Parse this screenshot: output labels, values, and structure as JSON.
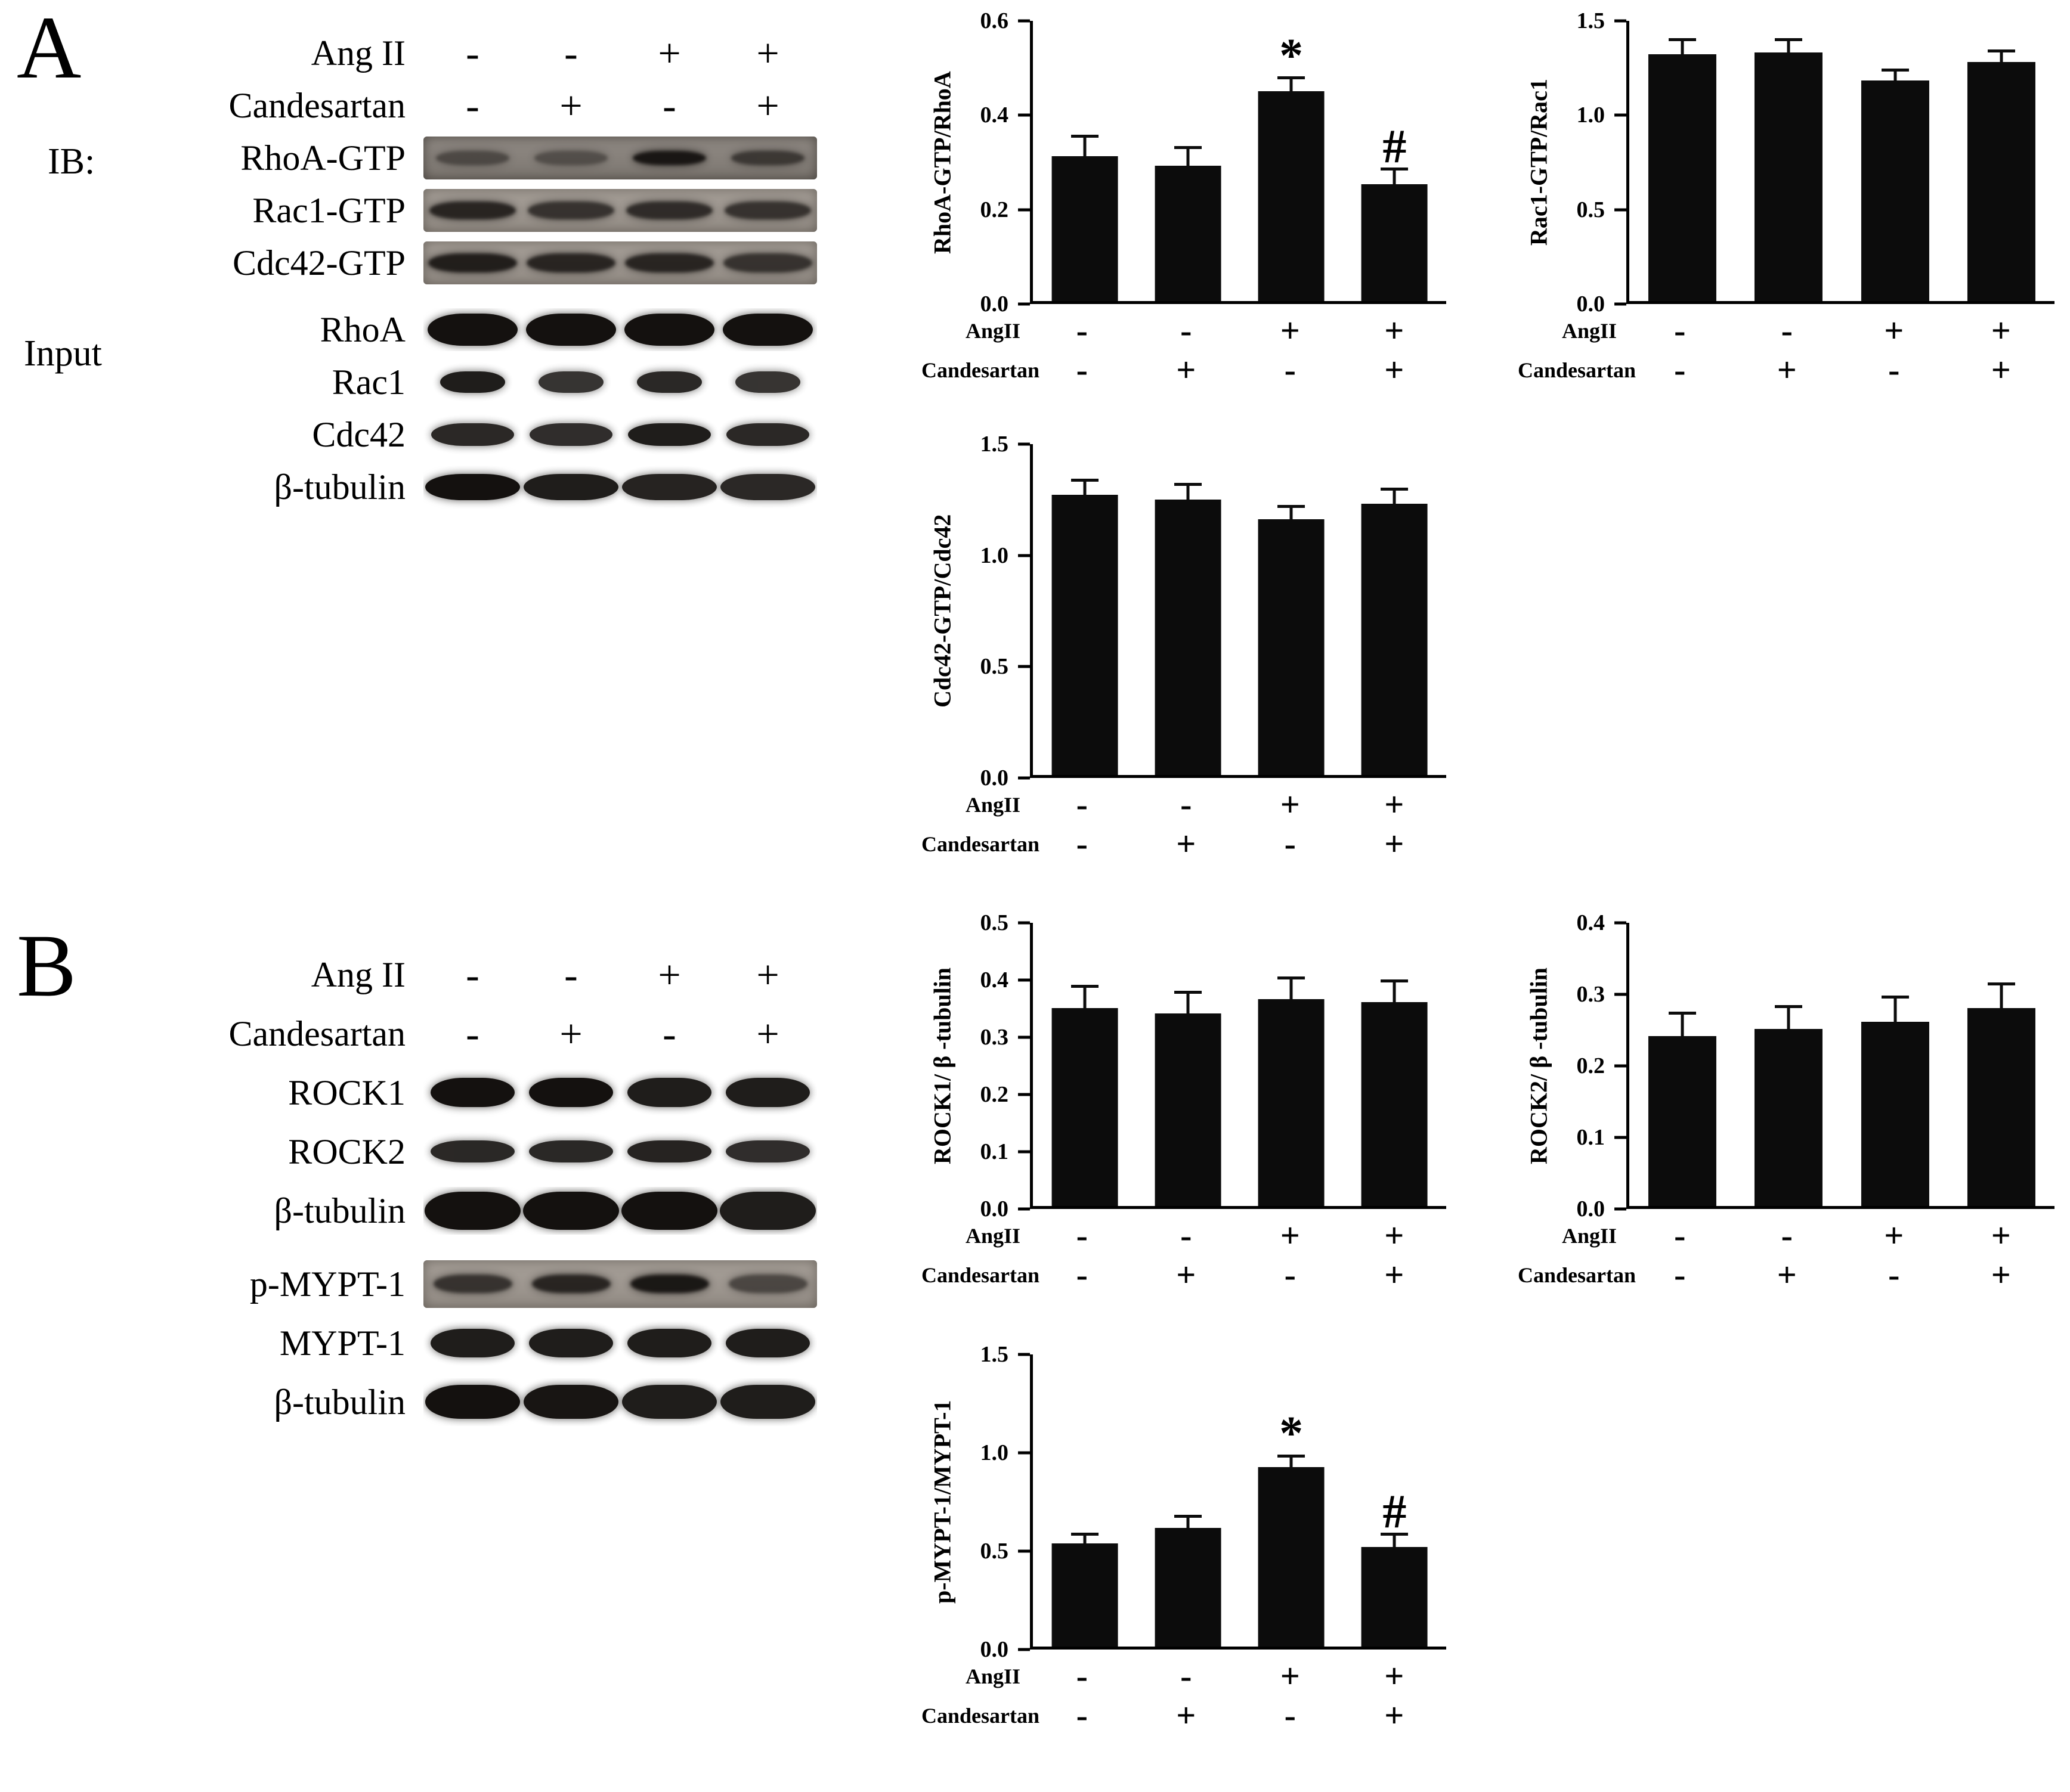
{
  "panels": [
    {
      "label": "A"
    },
    {
      "label": "B"
    }
  ],
  "blots": [
    {
      "header_rows": [
        {
          "label": "Ang II",
          "signs": [
            "-",
            "-",
            "+",
            "+"
          ]
        },
        {
          "label": "Candesartan",
          "signs": [
            "-",
            "+",
            "-",
            "+"
          ]
        }
      ],
      "side_labels": [
        {
          "text": "IB:"
        },
        {
          "text": "Input"
        }
      ],
      "rows": [
        {
          "label": "RhoA-GTP",
          "style": "noisy-dark",
          "bands": [
            0.5,
            0.45,
            0.95,
            0.65
          ],
          "band_h": 0.32,
          "band_w": 0.75
        },
        {
          "label": "Rac1-GTP",
          "style": "noisy",
          "bands": [
            0.85,
            0.75,
            0.8,
            0.75
          ],
          "band_h": 0.42,
          "band_w": 0.88
        },
        {
          "label": "Cdc42-GTP",
          "style": "noisy",
          "bands": [
            0.9,
            0.85,
            0.85,
            0.75
          ],
          "band_h": 0.44,
          "band_w": 0.9
        },
        {
          "label": "RhoA",
          "style": "clean",
          "bands": [
            1,
            1,
            1,
            1
          ],
          "band_h": 0.74,
          "band_w": 0.92,
          "gap_before": true
        },
        {
          "label": "Rac1",
          "style": "clean",
          "bands": [
            0.95,
            0.85,
            0.9,
            0.85
          ],
          "band_h": 0.5,
          "band_w": 0.66
        },
        {
          "label": "Cdc42",
          "style": "clean",
          "bands": [
            0.9,
            0.88,
            0.95,
            0.9
          ],
          "band_h": 0.52,
          "band_w": 0.84
        },
        {
          "label": "β-tubulin",
          "style": "clean",
          "bands": [
            1,
            0.95,
            0.92,
            0.9
          ],
          "band_h": 0.6,
          "band_w": 0.96
        }
      ]
    },
    {
      "header_rows": [
        {
          "label": "Ang II",
          "signs": [
            "-",
            "-",
            "+",
            "+"
          ]
        },
        {
          "label": "Candesartan",
          "signs": [
            "-",
            "+",
            "-",
            "+"
          ]
        }
      ],
      "side_labels": [],
      "rows": [
        {
          "label": "ROCK1",
          "style": "clean",
          "bands": [
            1,
            1,
            0.95,
            0.95
          ],
          "band_h": 0.62,
          "band_w": 0.86
        },
        {
          "label": "ROCK2",
          "style": "clean",
          "bands": [
            0.9,
            0.9,
            0.92,
            0.88
          ],
          "band_h": 0.46,
          "band_w": 0.86
        },
        {
          "label": "β-tubulin",
          "style": "clean",
          "bands": [
            1,
            1,
            1,
            0.95
          ],
          "band_h": 0.8,
          "band_w": 0.98
        },
        {
          "label": "p-MYPT-1",
          "style": "noisy",
          "bands": [
            0.75,
            0.85,
            0.95,
            0.6
          ],
          "band_h": 0.38,
          "band_w": 0.8,
          "gap_before": true
        },
        {
          "label": "MYPT-1",
          "style": "clean",
          "bands": [
            0.95,
            0.95,
            0.95,
            0.95
          ],
          "band_h": 0.6,
          "band_w": 0.86
        },
        {
          "label": "β-tubulin",
          "style": "clean",
          "bands": [
            1,
            0.98,
            0.95,
            0.95
          ],
          "band_h": 0.72,
          "band_w": 0.96
        }
      ]
    }
  ],
  "chart_data": [
    {
      "id": "rhoa-gtp-rhoa",
      "type": "bar",
      "title": "",
      "ylabel": "RhoA-GTP/RhoA",
      "ylim": [
        0,
        0.6
      ],
      "yticks": [
        "0.0",
        "0.2",
        "0.4",
        "0.6"
      ],
      "values": [
        0.31,
        0.29,
        0.45,
        0.25
      ],
      "errors": [
        0.04,
        0.035,
        0.025,
        0.03
      ],
      "annotations": [
        "",
        "",
        "*",
        "#"
      ],
      "x_rows": [
        {
          "label": "AngII",
          "signs": [
            "-",
            "-",
            "+",
            "+"
          ]
        },
        {
          "label": "Candesartan",
          "signs": [
            "-",
            "+",
            "-",
            "+"
          ]
        }
      ]
    },
    {
      "id": "rac1-gtp-rac1",
      "type": "bar",
      "title": "",
      "ylabel": "Rac1-GTP/Rac1",
      "ylim": [
        0,
        1.5
      ],
      "yticks": [
        "0.0",
        "0.5",
        "1.0",
        "1.5"
      ],
      "values": [
        1.32,
        1.33,
        1.18,
        1.28
      ],
      "errors": [
        0.07,
        0.06,
        0.05,
        0.05
      ],
      "annotations": [
        "",
        "",
        "",
        ""
      ],
      "x_rows": [
        {
          "label": "AngII",
          "signs": [
            "-",
            "-",
            "+",
            "+"
          ]
        },
        {
          "label": "Candesartan",
          "signs": [
            "-",
            "+",
            "-",
            "+"
          ]
        }
      ]
    },
    {
      "id": "cdc42-gtp-cdc42",
      "type": "bar",
      "title": "",
      "ylabel": "Cdc42-GTP/Cdc42",
      "ylim": [
        0,
        1.5
      ],
      "yticks": [
        "0.0",
        "0.5",
        "1.0",
        "1.5"
      ],
      "values": [
        1.27,
        1.25,
        1.16,
        1.23
      ],
      "errors": [
        0.06,
        0.06,
        0.05,
        0.06
      ],
      "annotations": [
        "",
        "",
        "",
        ""
      ],
      "x_rows": [
        {
          "label": "AngII",
          "signs": [
            "-",
            "-",
            "+",
            "+"
          ]
        },
        {
          "label": "Candesartan",
          "signs": [
            "-",
            "+",
            "-",
            "+"
          ]
        }
      ]
    },
    {
      "id": "rock1-btubulin",
      "type": "bar",
      "title": "",
      "ylabel": "ROCK1/ β -tubulin",
      "ylim": [
        0,
        0.5
      ],
      "yticks": [
        "0.0",
        "0.1",
        "0.2",
        "0.3",
        "0.4",
        "0.5"
      ],
      "values": [
        0.35,
        0.34,
        0.365,
        0.36
      ],
      "errors": [
        0.035,
        0.035,
        0.035,
        0.035
      ],
      "annotations": [
        "",
        "",
        "",
        ""
      ],
      "x_rows": [
        {
          "label": "AngII",
          "signs": [
            "-",
            "-",
            "+",
            "+"
          ]
        },
        {
          "label": "Candesartan",
          "signs": [
            "-",
            "+",
            "-",
            "+"
          ]
        }
      ]
    },
    {
      "id": "rock2-btubulin",
      "type": "bar",
      "title": "",
      "ylabel": "ROCK2/ β -tubulin",
      "ylim": [
        0,
        0.4
      ],
      "yticks": [
        "0.0",
        "0.1",
        "0.2",
        "0.3",
        "0.4"
      ],
      "values": [
        0.24,
        0.25,
        0.26,
        0.28
      ],
      "errors": [
        0.03,
        0.03,
        0.033,
        0.032
      ],
      "annotations": [
        "",
        "",
        "",
        ""
      ],
      "x_rows": [
        {
          "label": "AngII",
          "signs": [
            "-",
            "-",
            "+",
            "+"
          ]
        },
        {
          "label": "Candesartan",
          "signs": [
            "-",
            "+",
            "-",
            "+"
          ]
        }
      ]
    },
    {
      "id": "pmypt1-mypt1",
      "type": "bar",
      "title": "",
      "ylabel": "p-MYPT-1/MYPT-1",
      "ylim": [
        0,
        1.5
      ],
      "yticks": [
        "0.0",
        "0.5",
        "1.0",
        "1.5"
      ],
      "values": [
        0.53,
        0.61,
        0.92,
        0.51
      ],
      "errors": [
        0.04,
        0.05,
        0.05,
        0.06
      ],
      "annotations": [
        "",
        "",
        "*",
        "#"
      ],
      "x_rows": [
        {
          "label": "AngII",
          "signs": [
            "-",
            "-",
            "+",
            "+"
          ]
        },
        {
          "label": "Candesartan",
          "signs": [
            "-",
            "+",
            "-",
            "+"
          ]
        }
      ]
    }
  ]
}
